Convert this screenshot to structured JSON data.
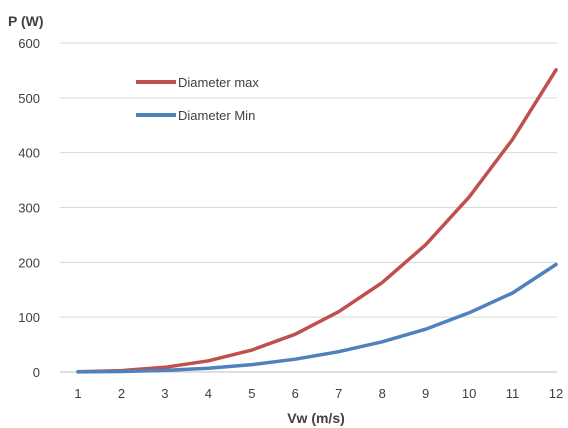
{
  "chart_data": {
    "type": "line",
    "title": "",
    "xlabel": "Vw (m/s)",
    "ylabel": "P (W)",
    "x": [
      1,
      2,
      3,
      4,
      5,
      6,
      7,
      8,
      9,
      10,
      11,
      12
    ],
    "ylim": [
      0,
      600
    ],
    "yticks": [
      0,
      100,
      200,
      300,
      400,
      500,
      600
    ],
    "grid": "horizontal",
    "legend_placement": "top-left",
    "series": [
      {
        "name": "Diameter max",
        "color": "#c0504d",
        "values": [
          0.3,
          2.5,
          8.6,
          20.4,
          39.9,
          69,
          110,
          163,
          232,
          319,
          424,
          551
        ]
      },
      {
        "name": "Diameter Min",
        "color": "#4f81bd",
        "values": [
          0.1,
          0.9,
          2.9,
          6.9,
          13.5,
          23.3,
          37,
          55,
          78,
          108,
          144,
          196
        ]
      }
    ]
  }
}
